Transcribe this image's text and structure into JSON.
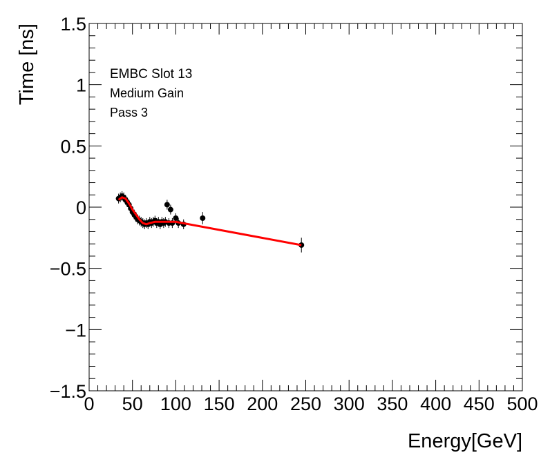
{
  "chart_data": {
    "type": "scatter",
    "xlabel": "Energy[GeV]",
    "ylabel": "Time [ns]",
    "xlim": [
      0,
      500
    ],
    "ylim": [
      -1.5,
      1.5
    ],
    "x_ticks": [
      "0",
      "50",
      "100",
      "150",
      "200",
      "250",
      "300",
      "350",
      "400",
      "450",
      "500"
    ],
    "y_ticks": [
      "−1.5",
      "−1",
      "−0.5",
      "0",
      "0.5",
      "1",
      "1.5"
    ],
    "annotations": [
      "EMBC Slot 13",
      "Medium Gain",
      "Pass 3"
    ],
    "grid": false,
    "colors": {
      "points": "#000000",
      "fit": "#ff0000"
    },
    "series": [
      {
        "type": "scatter",
        "x": [
          34,
          36,
          38,
          40,
          42,
          44,
          46,
          48,
          50,
          52,
          54,
          56,
          58,
          60,
          62,
          64,
          66,
          68,
          70,
          72,
          74,
          76,
          78,
          80,
          82,
          84,
          86,
          88,
          90,
          92,
          94,
          96,
          100,
          103,
          109,
          131,
          245
        ],
        "y": [
          0.07,
          0.08,
          0.09,
          0.08,
          0.06,
          0.04,
          0.02,
          -0.01,
          -0.04,
          -0.06,
          -0.08,
          -0.1,
          -0.11,
          -0.12,
          -0.13,
          -0.14,
          -0.13,
          -0.14,
          -0.12,
          -0.13,
          -0.12,
          -0.11,
          -0.13,
          -0.12,
          -0.14,
          -0.12,
          -0.13,
          -0.12,
          0.02,
          -0.13,
          -0.02,
          -0.13,
          -0.09,
          -0.13,
          -0.14,
          -0.09,
          -0.31
        ],
        "yerr": [
          0.04,
          0.04,
          0.04,
          0.04,
          0.04,
          0.04,
          0.04,
          0.04,
          0.04,
          0.04,
          0.04,
          0.04,
          0.04,
          0.04,
          0.04,
          0.04,
          0.04,
          0.04,
          0.04,
          0.04,
          0.04,
          0.04,
          0.04,
          0.04,
          0.04,
          0.04,
          0.04,
          0.04,
          0.04,
          0.04,
          0.04,
          0.04,
          0.04,
          0.04,
          0.04,
          0.05,
          0.06
        ]
      },
      {
        "type": "line",
        "x": [
          34,
          38,
          42,
          46,
          50,
          54,
          58,
          62,
          66,
          70,
          76,
          82,
          90,
          100,
          245
        ],
        "y": [
          0.06,
          0.08,
          0.07,
          0.03,
          -0.02,
          -0.06,
          -0.1,
          -0.13,
          -0.14,
          -0.13,
          -0.12,
          -0.12,
          -0.12,
          -0.12,
          -0.31
        ]
      }
    ]
  }
}
